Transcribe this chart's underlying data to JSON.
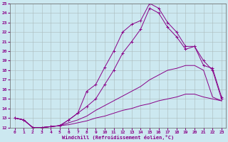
{
  "xlabel": "Windchill (Refroidissement éolien,°C)",
  "background_color": "#cce8f0",
  "line_color": "#880088",
  "xlim": [
    -0.5,
    23.5
  ],
  "ylim": [
    12,
    25
  ],
  "xticks": [
    0,
    1,
    2,
    3,
    4,
    5,
    6,
    7,
    8,
    9,
    10,
    11,
    12,
    13,
    14,
    15,
    16,
    17,
    18,
    19,
    20,
    21,
    22,
    23
  ],
  "yticks": [
    12,
    13,
    14,
    15,
    16,
    17,
    18,
    19,
    20,
    21,
    22,
    23,
    24,
    25
  ],
  "lines": [
    {
      "x": [
        0,
        1,
        2,
        3,
        4,
        5,
        6,
        7,
        8,
        9,
        10,
        11,
        12,
        13,
        14,
        15,
        16,
        17,
        18,
        19,
        20,
        21,
        22,
        23
      ],
      "y": [
        13.0,
        12.8,
        12.0,
        12.0,
        12.1,
        12.2,
        12.8,
        13.5,
        15.8,
        16.5,
        18.3,
        20.0,
        22.0,
        22.8,
        23.2,
        25.0,
        24.5,
        23.0,
        22.0,
        20.5,
        20.5,
        19.0,
        18.0,
        15.0
      ],
      "marker": true
    },
    {
      "x": [
        0,
        1,
        2,
        3,
        4,
        5,
        6,
        7,
        8,
        9,
        10,
        11,
        12,
        13,
        14,
        15,
        16,
        17,
        18,
        19,
        20,
        21,
        22,
        23
      ],
      "y": [
        13.0,
        12.8,
        12.0,
        12.0,
        12.1,
        12.2,
        12.8,
        13.5,
        14.2,
        15.0,
        16.5,
        18.0,
        19.8,
        21.0,
        22.3,
        24.5,
        24.0,
        22.5,
        21.5,
        20.2,
        20.5,
        18.5,
        18.2,
        15.2
      ],
      "marker": true
    },
    {
      "x": [
        0,
        1,
        2,
        3,
        4,
        5,
        6,
        7,
        8,
        9,
        10,
        11,
        12,
        13,
        14,
        15,
        16,
        17,
        18,
        19,
        20,
        21,
        22,
        23
      ],
      "y": [
        13.0,
        12.8,
        12.0,
        12.0,
        12.1,
        12.2,
        12.5,
        12.8,
        13.2,
        13.8,
        14.3,
        14.8,
        15.3,
        15.8,
        16.3,
        17.0,
        17.5,
        18.0,
        18.2,
        18.5,
        18.5,
        18.0,
        15.2,
        14.8
      ],
      "marker": false
    },
    {
      "x": [
        0,
        1,
        2,
        3,
        4,
        5,
        6,
        7,
        8,
        9,
        10,
        11,
        12,
        13,
        14,
        15,
        16,
        17,
        18,
        19,
        20,
        21,
        22,
        23
      ],
      "y": [
        13.0,
        12.8,
        12.0,
        12.0,
        12.1,
        12.2,
        12.3,
        12.5,
        12.7,
        13.0,
        13.2,
        13.5,
        13.8,
        14.0,
        14.3,
        14.5,
        14.8,
        15.0,
        15.2,
        15.5,
        15.5,
        15.2,
        15.0,
        14.8
      ],
      "marker": false
    }
  ]
}
